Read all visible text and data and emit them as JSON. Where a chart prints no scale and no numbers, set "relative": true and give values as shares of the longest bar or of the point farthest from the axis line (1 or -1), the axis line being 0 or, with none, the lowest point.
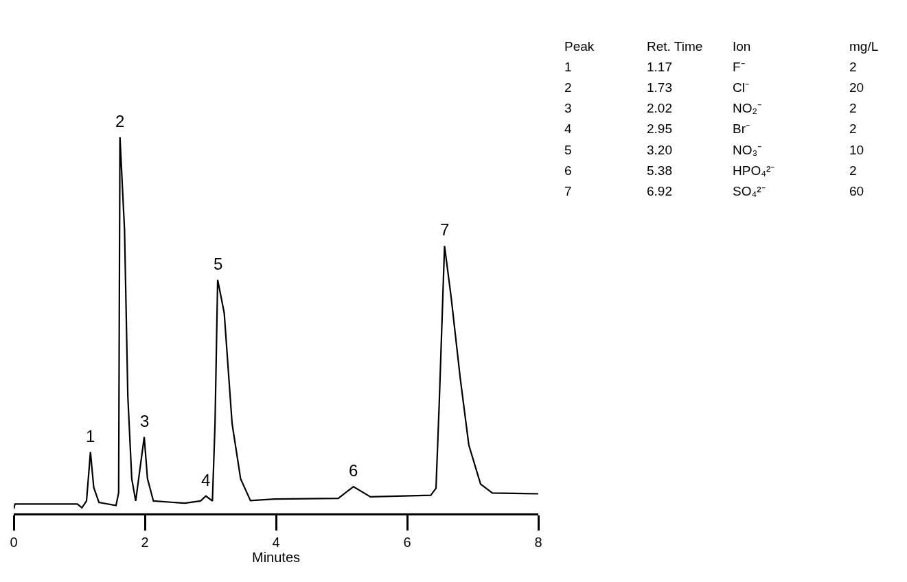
{
  "chart_data": {
    "type": "line",
    "relative": true,
    "xlabel": "Minutes",
    "xlim": [
      0,
      8
    ],
    "xticks": [
      0,
      2,
      4,
      6,
      8
    ],
    "marker": "none",
    "line_style": "solid",
    "series": [
      {
        "color": "#000000",
        "x": [
          0.0,
          0.02,
          0.97,
          1.04,
          1.11,
          1.17,
          1.22,
          1.3,
          1.56,
          1.6,
          1.62,
          1.69,
          1.74,
          1.8,
          1.86,
          1.99,
          2.04,
          2.13,
          2.61,
          2.85,
          2.93,
          3.03,
          3.07,
          3.11,
          3.21,
          3.33,
          3.46,
          3.61,
          3.98,
          4.95,
          5.18,
          5.44,
          6.36,
          6.44,
          6.49,
          6.57,
          6.67,
          6.81,
          6.94,
          7.12,
          7.3,
          8.0
        ],
        "values": [
          0.012,
          0.025,
          0.025,
          0.015,
          0.033,
          0.163,
          0.069,
          0.029,
          0.021,
          0.055,
          1.0,
          0.753,
          0.312,
          0.092,
          0.033,
          0.203,
          0.092,
          0.033,
          0.027,
          0.033,
          0.046,
          0.033,
          0.239,
          0.621,
          0.533,
          0.239,
          0.092,
          0.034,
          0.038,
          0.04,
          0.071,
          0.044,
          0.048,
          0.067,
          0.296,
          0.711,
          0.576,
          0.359,
          0.182,
          0.078,
          0.054,
          0.052
        ]
      }
    ],
    "annotations": [
      {
        "text": "1",
        "x": 1.17,
        "y": 0.163
      },
      {
        "text": "2",
        "x": 1.62,
        "y": 1.0
      },
      {
        "text": "3",
        "x": 1.99,
        "y": 0.203
      },
      {
        "text": "4",
        "x": 2.93,
        "y": 0.046
      },
      {
        "text": "5",
        "x": 3.11,
        "y": 0.621
      },
      {
        "text": "6",
        "x": 5.18,
        "y": 0.071
      },
      {
        "text": "7",
        "x": 6.57,
        "y": 0.711
      },
      "Peak",
      "Ret. Time",
      "Ion",
      "mg/L",
      "1",
      "1.17",
      "F⁻",
      "2",
      "2",
      "1.73",
      "Cl⁻",
      "20",
      "3",
      "2.02",
      "NO₂⁻",
      "2",
      "4",
      "2.95",
      "Br⁻",
      "2",
      "5",
      "3.20",
      "NO₃⁻",
      "10",
      "6",
      "5.38",
      "HPO₄²⁻",
      "2",
      "7",
      "6.92",
      "SO₄²⁻",
      "60"
    ]
  }
}
